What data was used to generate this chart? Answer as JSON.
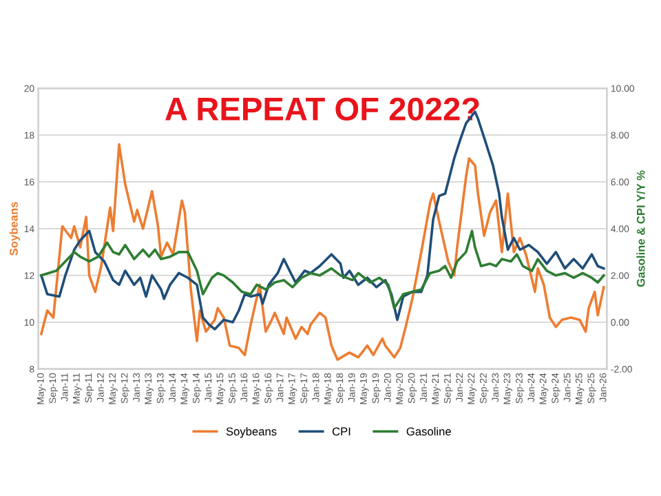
{
  "chart_data": {
    "type": "line",
    "title": "A REPEAT OF 2022?",
    "ylabel": "Soybeans",
    "y2label": "Gasoline & CPI Y/Y %",
    "series": [
      {
        "name": "Soybeans",
        "color": "#ed7d31",
        "x": [
          "2010-05",
          "2010-07",
          "2010-09",
          "2010-12",
          "2011-03",
          "2011-04",
          "2011-06",
          "2011-08",
          "2011-09",
          "2011-11",
          "2012-01",
          "2012-04",
          "2012-05",
          "2012-07",
          "2012-09",
          "2012-12",
          "2013-01",
          "2013-03",
          "2013-06",
          "2013-08",
          "2013-09",
          "2013-11",
          "2014-01",
          "2014-04",
          "2014-05",
          "2014-07",
          "2014-09",
          "2014-10",
          "2014-12",
          "2015-03",
          "2015-04",
          "2015-06",
          "2015-08",
          "2015-11",
          "2016-01",
          "2016-03",
          "2016-06",
          "2016-08",
          "2016-10",
          "2016-11",
          "2017-02",
          "2017-03",
          "2017-06",
          "2017-08",
          "2017-10",
          "2017-11",
          "2018-02",
          "2018-04",
          "2018-06",
          "2018-08",
          "2018-12",
          "2019-03",
          "2019-06",
          "2019-08",
          "2019-11",
          "2019-12",
          "2020-03",
          "2020-05",
          "2020-07",
          "2020-09",
          "2020-12",
          "2021-03",
          "2021-04",
          "2021-06",
          "2021-09",
          "2021-11",
          "2021-12",
          "2022-03",
          "2022-04",
          "2022-06",
          "2022-07",
          "2022-09",
          "2022-11",
          "2023-01",
          "2023-03",
          "2023-05",
          "2023-07",
          "2023-09",
          "2023-11",
          "2024-02",
          "2024-03",
          "2024-05",
          "2024-07",
          "2024-09",
          "2024-11",
          "2025-02",
          "2025-05",
          "2025-07",
          "2025-08",
          "2025-10",
          "2025-11",
          "2026-01"
        ],
        "values": [
          9.5,
          10.5,
          10.2,
          14.1,
          13.6,
          14.1,
          13.2,
          14.5,
          12.0,
          11.3,
          12.4,
          14.9,
          13.9,
          17.6,
          15.9,
          14.3,
          14.8,
          14.0,
          15.6,
          14.1,
          12.8,
          13.4,
          12.9,
          15.2,
          14.7,
          11.4,
          9.2,
          10.5,
          9.6,
          10.1,
          10.6,
          10.2,
          9.0,
          8.9,
          8.6,
          9.9,
          11.6,
          9.6,
          10.1,
          10.4,
          9.5,
          10.2,
          9.3,
          9.8,
          9.5,
          9.9,
          10.4,
          10.2,
          9.0,
          8.4,
          8.7,
          8.5,
          9.0,
          8.6,
          9.3,
          9.0,
          8.5,
          8.9,
          9.9,
          11.0,
          13.0,
          15.1,
          15.5,
          14.3,
          12.6,
          12.0,
          13.2,
          16.2,
          17.0,
          16.7,
          15.5,
          13.7,
          14.7,
          15.2,
          13.0,
          15.5,
          13.0,
          13.6,
          12.9,
          11.3,
          12.3,
          11.6,
          10.2,
          9.8,
          10.1,
          10.2,
          10.1,
          9.6,
          10.6,
          11.3,
          10.3,
          11.5
        ]
      },
      {
        "name": "CPI",
        "color": "#1f4e79",
        "axis": "y2",
        "x": [
          "2010-05",
          "2010-07",
          "2010-11",
          "2011-01",
          "2011-04",
          "2011-06",
          "2011-09",
          "2011-11",
          "2012-02",
          "2012-05",
          "2012-07",
          "2012-09",
          "2012-12",
          "2013-02",
          "2013-04",
          "2013-06",
          "2013-09",
          "2013-10",
          "2013-12",
          "2014-03",
          "2014-06",
          "2014-09",
          "2014-11",
          "2015-01",
          "2015-03",
          "2015-06",
          "2015-09",
          "2015-11",
          "2016-01",
          "2016-03",
          "2016-06",
          "2016-07",
          "2016-09",
          "2016-12",
          "2017-02",
          "2017-04",
          "2017-06",
          "2017-09",
          "2017-11",
          "2018-02",
          "2018-06",
          "2018-09",
          "2018-10",
          "2018-12",
          "2019-03",
          "2019-06",
          "2019-09",
          "2019-12",
          "2020-02",
          "2020-04",
          "2020-06",
          "2020-09",
          "2020-12",
          "2021-02",
          "2021-04",
          "2021-06",
          "2021-08",
          "2021-11",
          "2022-01",
          "2022-03",
          "2022-06",
          "2022-07",
          "2022-09",
          "2022-12",
          "2023-02",
          "2023-03",
          "2023-05",
          "2023-07",
          "2023-09",
          "2023-12",
          "2024-03",
          "2024-06",
          "2024-09",
          "2024-12",
          "2025-03",
          "2025-06",
          "2025-09",
          "2025-11",
          "2026-01"
        ],
        "values": [
          2.0,
          1.2,
          1.1,
          2.0,
          3.1,
          3.5,
          3.9,
          3.0,
          2.6,
          1.8,
          1.6,
          2.2,
          1.6,
          1.9,
          1.1,
          2.0,
          1.4,
          1.0,
          1.6,
          2.1,
          1.9,
          1.6,
          0.2,
          -0.1,
          -0.3,
          0.1,
          0.0,
          0.5,
          1.2,
          1.1,
          1.2,
          0.8,
          1.6,
          2.1,
          2.7,
          2.2,
          1.7,
          2.2,
          2.1,
          2.4,
          2.9,
          2.5,
          1.9,
          2.2,
          1.6,
          1.9,
          1.5,
          1.8,
          1.2,
          0.1,
          1.1,
          1.3,
          1.3,
          2.0,
          4.4,
          5.4,
          5.5,
          7.0,
          7.8,
          8.5,
          9.0,
          8.7,
          7.9,
          6.7,
          5.5,
          4.5,
          3.1,
          3.6,
          3.1,
          3.3,
          3.0,
          2.5,
          3.0,
          2.3,
          2.7,
          2.3,
          2.9,
          2.4,
          2.3
        ]
      },
      {
        "name": "Gasoline",
        "color": "#2e7d32",
        "axis": "y2",
        "x": [
          "2010-05",
          "2010-10",
          "2011-01",
          "2011-04",
          "2011-06",
          "2011-09",
          "2011-12",
          "2012-03",
          "2012-05",
          "2012-07",
          "2012-09",
          "2012-12",
          "2013-03",
          "2013-05",
          "2013-07",
          "2013-09",
          "2013-12",
          "2014-03",
          "2014-06",
          "2014-09",
          "2014-11",
          "2015-02",
          "2015-04",
          "2015-06",
          "2015-09",
          "2015-12",
          "2016-03",
          "2016-05",
          "2016-08",
          "2016-11",
          "2017-02",
          "2017-05",
          "2017-08",
          "2017-11",
          "2018-02",
          "2018-06",
          "2018-09",
          "2019-01",
          "2019-03",
          "2019-07",
          "2019-10",
          "2020-01",
          "2020-03",
          "2020-06",
          "2020-09",
          "2020-12",
          "2021-03",
          "2021-06",
          "2021-08",
          "2021-10",
          "2021-12",
          "2022-03",
          "2022-05",
          "2022-06",
          "2022-08",
          "2022-11",
          "2023-01",
          "2023-03",
          "2023-06",
          "2023-08",
          "2023-10",
          "2024-01",
          "2024-03",
          "2024-06",
          "2024-09",
          "2024-12",
          "2025-03",
          "2025-06",
          "2025-09",
          "2025-11",
          "2026-01"
        ],
        "values": [
          2.0,
          2.2,
          2.6,
          3.0,
          2.8,
          2.6,
          2.8,
          3.4,
          3.0,
          2.9,
          3.3,
          2.7,
          3.1,
          2.8,
          3.1,
          2.7,
          2.8,
          3.0,
          3.0,
          2.2,
          1.2,
          1.9,
          2.1,
          2.0,
          1.7,
          1.3,
          1.2,
          1.6,
          1.4,
          1.7,
          1.8,
          1.5,
          1.9,
          2.1,
          2.0,
          2.3,
          2.0,
          1.8,
          2.1,
          1.7,
          1.9,
          1.6,
          0.6,
          1.2,
          1.3,
          1.4,
          2.1,
          2.2,
          2.4,
          1.9,
          2.6,
          3.0,
          3.9,
          3.2,
          2.4,
          2.5,
          2.4,
          2.7,
          2.6,
          2.9,
          2.4,
          2.2,
          2.7,
          2.2,
          2.0,
          2.1,
          1.9,
          2.1,
          1.9,
          1.7,
          2.0
        ]
      }
    ],
    "xlim": [
      "2010-04",
      "2026-02"
    ],
    "xticks": [
      {
        "value": "2010-05",
        "label": "May-10"
      },
      {
        "value": "2010-09",
        "label": "Sep-10"
      },
      {
        "value": "2011-01",
        "label": "Jan-11"
      },
      {
        "value": "2011-05",
        "label": "May-11"
      },
      {
        "value": "2011-09",
        "label": "Sep-11"
      },
      {
        "value": "2012-01",
        "label": "Jan-12"
      },
      {
        "value": "2012-05",
        "label": "May-12"
      },
      {
        "value": "2012-09",
        "label": "Sep-12"
      },
      {
        "value": "2013-01",
        "label": "Jan-13"
      },
      {
        "value": "2013-05",
        "label": "May-13"
      },
      {
        "value": "2013-09",
        "label": "Sep-13"
      },
      {
        "value": "2014-01",
        "label": "Jan-14"
      },
      {
        "value": "2014-05",
        "label": "May-14"
      },
      {
        "value": "2014-09",
        "label": "Sep-14"
      },
      {
        "value": "2015-01",
        "label": "Jan-15"
      },
      {
        "value": "2015-05",
        "label": "May-15"
      },
      {
        "value": "2015-09",
        "label": "Sep-15"
      },
      {
        "value": "2016-01",
        "label": "Jan-16"
      },
      {
        "value": "2016-05",
        "label": "May-16"
      },
      {
        "value": "2016-09",
        "label": "Sep-16"
      },
      {
        "value": "2017-01",
        "label": "Jan-17"
      },
      {
        "value": "2017-05",
        "label": "May-17"
      },
      {
        "value": "2017-09",
        "label": "Sep-17"
      },
      {
        "value": "2018-01",
        "label": "Jan-18"
      },
      {
        "value": "2018-05",
        "label": "May-18"
      },
      {
        "value": "2018-09",
        "label": "Sep-18"
      },
      {
        "value": "2019-01",
        "label": "Jan-19"
      },
      {
        "value": "2019-05",
        "label": "May-19"
      },
      {
        "value": "2019-09",
        "label": "Sep-19"
      },
      {
        "value": "2020-01",
        "label": "Jan-20"
      },
      {
        "value": "2020-05",
        "label": "May-20"
      },
      {
        "value": "2020-09",
        "label": "Sep-20"
      },
      {
        "value": "2021-01",
        "label": "Jan-21"
      },
      {
        "value": "2021-05",
        "label": "May-21"
      },
      {
        "value": "2021-09",
        "label": "Sep-21"
      },
      {
        "value": "2022-01",
        "label": "Jan-22"
      },
      {
        "value": "2022-05",
        "label": "May-22"
      },
      {
        "value": "2022-09",
        "label": "Sep-22"
      },
      {
        "value": "2023-01",
        "label": "Jan-23"
      },
      {
        "value": "2023-05",
        "label": "May-23"
      },
      {
        "value": "2023-09",
        "label": "Sep-23"
      },
      {
        "value": "2024-01",
        "label": "Jan-24"
      },
      {
        "value": "2024-05",
        "label": "May-24"
      },
      {
        "value": "2024-09",
        "label": "Sep-24"
      },
      {
        "value": "2025-01",
        "label": "Jan-25"
      },
      {
        "value": "2025-05",
        "label": "May-25"
      },
      {
        "value": "2025-09",
        "label": "Sep-25"
      },
      {
        "value": "2026-01",
        "label": "Jan-26"
      }
    ],
    "ylim": [
      8,
      20
    ],
    "yticks": [
      8,
      10,
      12,
      14,
      16,
      18,
      20
    ],
    "y2lim": [
      -2,
      10
    ],
    "y2ticks": [
      {
        "value": -2,
        "label": "-2.00"
      },
      {
        "value": 0,
        "label": "0.00"
      },
      {
        "value": 2,
        "label": "2.00"
      },
      {
        "value": 4,
        "label": "4.00"
      },
      {
        "value": 6,
        "label": "6.00"
      },
      {
        "value": 8,
        "label": "8.00"
      },
      {
        "value": 10,
        "label": "10.00"
      }
    ],
    "grid": "y",
    "legend": "bottom",
    "marker": "none",
    "line_style": "solid"
  }
}
